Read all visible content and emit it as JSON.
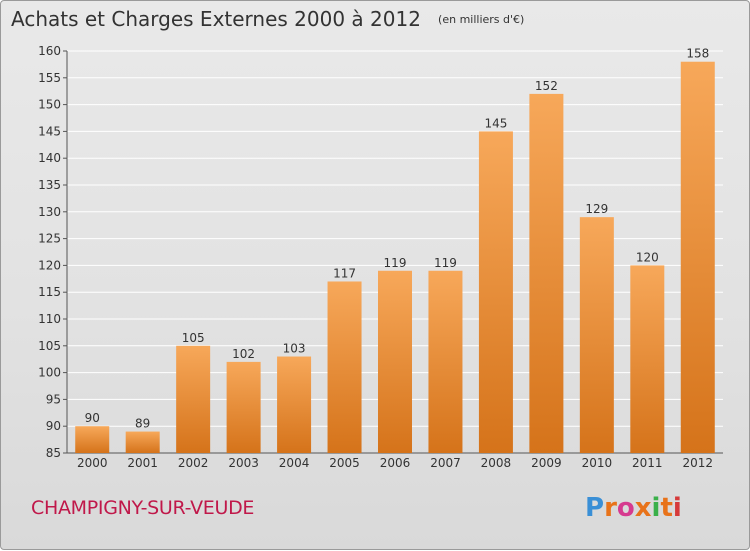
{
  "title": "Achats et Charges Externes 2000 à 2012",
  "unit": "(en milliers d'€)",
  "commune": "CHAMPIGNY-SUR-VEUDE",
  "brand": "Proxiti",
  "colors": {
    "bar_light": "#f7a85a",
    "bar_dark": "#d5731a",
    "grid": "#ffffff",
    "axis": "#555555",
    "commune_text": "#c0184a"
  },
  "chart_data": {
    "type": "bar",
    "categories": [
      "2000",
      "2001",
      "2002",
      "2003",
      "2004",
      "2005",
      "2006",
      "2007",
      "2008",
      "2009",
      "2010",
      "2011",
      "2012"
    ],
    "values": [
      90,
      89,
      105,
      102,
      103,
      117,
      119,
      119,
      145,
      152,
      129,
      120,
      158
    ],
    "ylim": [
      85,
      160
    ],
    "yticks": [
      85,
      90,
      95,
      100,
      105,
      110,
      115,
      120,
      125,
      130,
      135,
      140,
      145,
      150,
      155,
      160
    ],
    "grid": true
  }
}
